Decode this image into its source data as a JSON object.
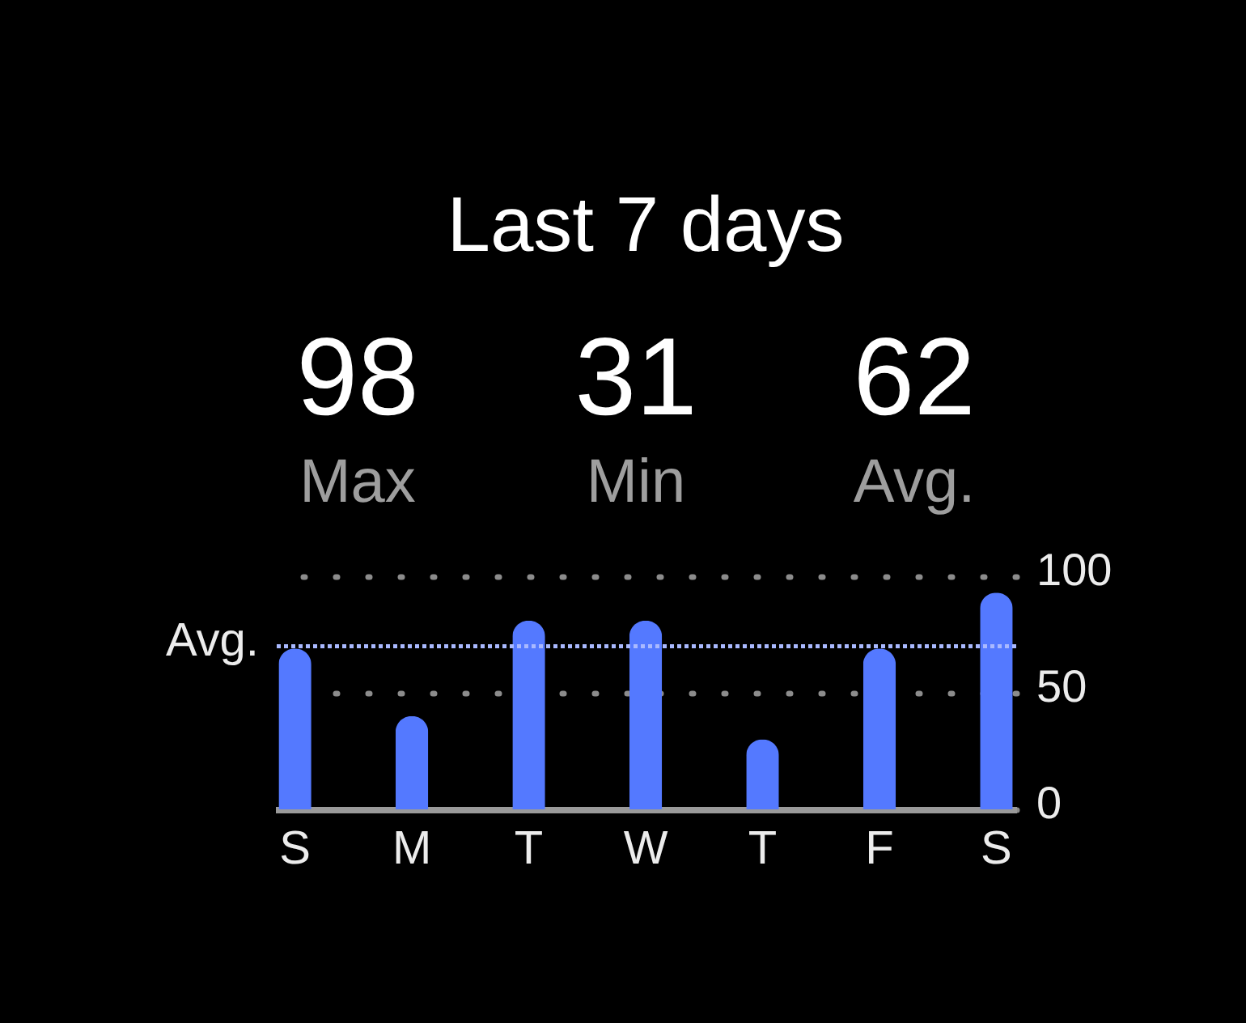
{
  "chart_data": {
    "type": "bar",
    "title": "Last 7 days",
    "annotations": [
      "98",
      "Max",
      "31",
      "Min",
      "62",
      "Avg."
    ],
    "categories": [
      "S",
      "M",
      "T",
      "W",
      "T",
      "F",
      "S"
    ],
    "values": [
      69,
      40,
      81,
      81,
      30,
      69,
      93
    ],
    "color": "#5479ff",
    "ylim": [
      0,
      100
    ],
    "yticks": [
      0,
      50,
      100
    ],
    "grid": "y",
    "ref_lines": [
      {
        "axis": "y",
        "value": 70,
        "label": "Avg.",
        "color": "#a9b9ff",
        "line_style": "dotted"
      }
    ]
  }
}
